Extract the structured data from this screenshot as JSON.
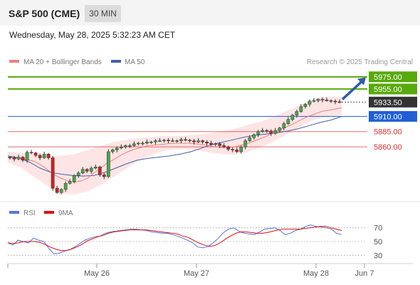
{
  "header": {
    "title": "S&P 500 (CME)",
    "interval": "30 MIN"
  },
  "datetime": "Wednesday, May 28, 2025 5:32:23 AM CET",
  "legend": {
    "ma20_label": "MA 20 + Bollinger Bands",
    "ma50_label": "MA 50",
    "credit": "Research © 2025 Trading Central",
    "rsi_label": "RSI",
    "rsi_ma_label": "9MA"
  },
  "colors": {
    "target": "#58a90c",
    "current": "#333333",
    "pivot": "#1e5fd8",
    "support": "#e03030",
    "ma20": "#f08080",
    "ma50": "#4460a8",
    "rsi": "#5577dd",
    "rsi_ma": "#dd1111",
    "band_fill": "#fde1e1",
    "arrow": "#2a5ea8"
  },
  "chart_data": [
    {
      "type": "candlestick",
      "x_ticks": [
        "May 26",
        "May 27",
        "May 28",
        "Jun 7"
      ],
      "ylim": [
        5770,
        5990
      ],
      "levels": [
        {
          "value": 5975.0,
          "label": "5975.00",
          "kind": "target"
        },
        {
          "value": 5955.0,
          "label": "5955.00",
          "kind": "target"
        },
        {
          "value": 5933.5,
          "label": "5933.50",
          "kind": "current"
        },
        {
          "value": 5910.0,
          "label": "5910.00",
          "kind": "pivot"
        },
        {
          "value": 5885.0,
          "label": "5885.00",
          "kind": "support"
        },
        {
          "value": 5860.0,
          "label": "5860.00",
          "kind": "support"
        }
      ],
      "close": [
        5842,
        5840,
        5843,
        5838,
        5851,
        5850,
        5846,
        5842,
        5848,
        5842,
        5792,
        5785,
        5790,
        5800,
        5803,
        5813,
        5817,
        5823,
        5820,
        5825,
        5827,
        5814,
        5811,
        5852,
        5855,
        5858,
        5860,
        5862,
        5862,
        5865,
        5866,
        5866,
        5868,
        5868,
        5870,
        5870,
        5871,
        5870,
        5870,
        5870,
        5872,
        5871,
        5870,
        5868,
        5870,
        5868,
        5866,
        5864,
        5865,
        5862,
        5860,
        5856,
        5855,
        5852,
        5860,
        5870,
        5875,
        5880,
        5885,
        5887,
        5886,
        5882,
        5887,
        5891,
        5898,
        5905,
        5912,
        5918,
        5926,
        5930,
        5935,
        5936,
        5938,
        5937,
        5936,
        5935,
        5934,
        5933.5
      ],
      "ma20": [
        5843,
        5842,
        5841,
        5839,
        5836,
        5830,
        5822,
        5814,
        5808,
        5804,
        5802,
        5804,
        5809,
        5818,
        5826,
        5834,
        5840,
        5847,
        5852,
        5856,
        5859,
        5862,
        5863,
        5864,
        5865,
        5866,
        5866,
        5866,
        5865,
        5864,
        5862,
        5860,
        5859,
        5859,
        5860,
        5863,
        5866,
        5870,
        5874,
        5879,
        5884,
        5889,
        5894,
        5899,
        5905,
        5910,
        5914,
        5918,
        5920,
        5922,
        5924
      ],
      "ma50": [
        5845,
        5842,
        5835,
        5825,
        5818,
        5815,
        5813,
        5812,
        5813,
        5818,
        5825,
        5832,
        5838,
        5841,
        5843,
        5845,
        5848,
        5852,
        5858,
        5864,
        5868,
        5872,
        5876,
        5879,
        5881,
        5883,
        5886,
        5890,
        5895,
        5900,
        5904,
        5910
      ],
      "bollinger_upper": [
        5852,
        5850,
        5848,
        5845,
        5845,
        5848,
        5855,
        5862,
        5868,
        5872,
        5875,
        5877,
        5878,
        5878,
        5880,
        5882,
        5885,
        5890,
        5896,
        5902,
        5910,
        5920,
        5930,
        5940,
        5943,
        5942
      ],
      "bollinger_lower": [
        5834,
        5826,
        5810,
        5795,
        5783,
        5782,
        5787,
        5798,
        5812,
        5826,
        5839,
        5849,
        5855,
        5856,
        5855,
        5851,
        5848,
        5847,
        5852,
        5860,
        5870,
        5882,
        5895,
        5905,
        5910,
        5912
      ]
    },
    {
      "type": "line",
      "ylim": [
        20,
        80
      ],
      "y_ticks": [
        70,
        50,
        30
      ],
      "series": [
        {
          "name": "RSI",
          "values": [
            48,
            45,
            52,
            50,
            48,
            55,
            52,
            50,
            40,
            32,
            33,
            36,
            38,
            42,
            47,
            52,
            55,
            57,
            58,
            62,
            64,
            65,
            66,
            67,
            68,
            68,
            67,
            66,
            64,
            63,
            62,
            62,
            60,
            58,
            55,
            52,
            48,
            42,
            41,
            43,
            48,
            55,
            63,
            68,
            70,
            65,
            62,
            61,
            60,
            64,
            68,
            69,
            70,
            66,
            60,
            62,
            66,
            68,
            72,
            74,
            72,
            71,
            70,
            68,
            62,
            60
          ]
        },
        {
          "name": "9MA",
          "values": [
            48,
            47,
            48,
            50,
            50,
            50,
            49,
            46,
            42,
            39,
            37,
            37,
            39,
            42,
            46,
            51,
            54,
            57,
            59,
            62,
            64,
            65,
            66,
            67,
            67,
            67,
            67,
            66,
            65,
            64,
            63,
            62,
            61,
            58,
            56,
            52,
            48,
            45,
            43,
            44,
            48,
            53,
            58,
            62,
            64,
            64,
            63,
            62,
            62,
            63,
            65,
            67,
            68,
            68,
            68,
            68,
            69,
            70,
            71,
            72,
            72,
            70,
            68,
            66
          ]
        }
      ]
    }
  ]
}
